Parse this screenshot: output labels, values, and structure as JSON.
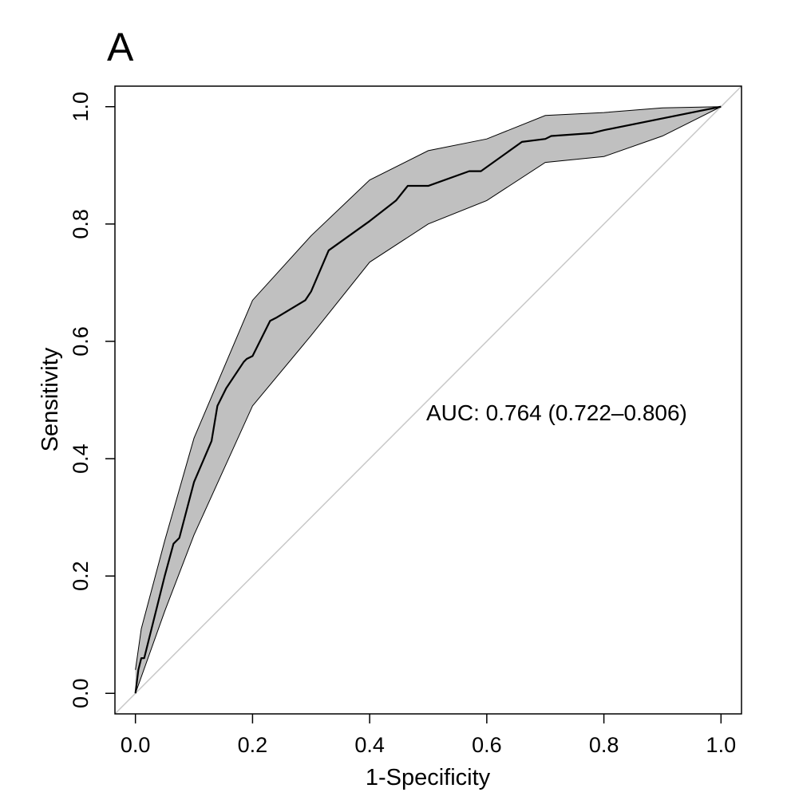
{
  "panel_label": "A",
  "chart_data": {
    "type": "line",
    "xlabel": "1-Specificity",
    "ylabel": "Sensitivity",
    "xlim": [
      -0.035,
      1.035
    ],
    "ylim": [
      -0.035,
      1.035
    ],
    "xticks": [
      0.0,
      0.2,
      0.4,
      0.6,
      0.8,
      1.0
    ],
    "yticks": [
      0.0,
      0.2,
      0.4,
      0.6,
      0.8,
      1.0
    ],
    "xtick_labels": [
      "0.0",
      "0.2",
      "0.4",
      "0.6",
      "0.8",
      "1.0"
    ],
    "ytick_labels": [
      "0.0",
      "0.2",
      "0.4",
      "0.6",
      "0.8",
      "1.0"
    ],
    "grid": false,
    "annotation": "AUC: 0.764 (0.722–0.806)",
    "colors": {
      "band_fill": "#c0c0c0",
      "line": "#000000",
      "diagonal": "#c8c8c8",
      "frame": "#000000"
    },
    "roc_curve": {
      "x": [
        0.0,
        0.005,
        0.01,
        0.015,
        0.02,
        0.035,
        0.05,
        0.065,
        0.075,
        0.1,
        0.13,
        0.14,
        0.155,
        0.185,
        0.19,
        0.2,
        0.23,
        0.24,
        0.29,
        0.3,
        0.33,
        0.4,
        0.445,
        0.465,
        0.49,
        0.5,
        0.57,
        0.59,
        0.66,
        0.7,
        0.71,
        0.78,
        0.8,
        1.0
      ],
      "y": [
        0.0,
        0.04,
        0.06,
        0.06,
        0.08,
        0.14,
        0.2,
        0.255,
        0.265,
        0.36,
        0.43,
        0.49,
        0.52,
        0.565,
        0.57,
        0.575,
        0.635,
        0.64,
        0.67,
        0.685,
        0.755,
        0.805,
        0.84,
        0.865,
        0.865,
        0.865,
        0.89,
        0.89,
        0.94,
        0.945,
        0.95,
        0.955,
        0.96,
        1.0
      ]
    },
    "ci_upper": {
      "x": [
        0.0,
        0.01,
        0.05,
        0.1,
        0.2,
        0.3,
        0.4,
        0.5,
        0.6,
        0.7,
        0.8,
        0.9,
        1.0
      ],
      "y": [
        0.04,
        0.11,
        0.26,
        0.435,
        0.67,
        0.78,
        0.875,
        0.925,
        0.945,
        0.985,
        0.99,
        0.998,
        1.0
      ]
    },
    "ci_lower": {
      "x": [
        0.0,
        0.05,
        0.1,
        0.2,
        0.3,
        0.4,
        0.5,
        0.6,
        0.7,
        0.8,
        0.9,
        1.0
      ],
      "y": [
        0.0,
        0.14,
        0.27,
        0.49,
        0.61,
        0.735,
        0.8,
        0.84,
        0.905,
        0.915,
        0.95,
        1.0
      ]
    },
    "diagonal": {
      "x": [
        -0.035,
        1.035
      ],
      "y": [
        -0.035,
        1.035
      ]
    }
  }
}
